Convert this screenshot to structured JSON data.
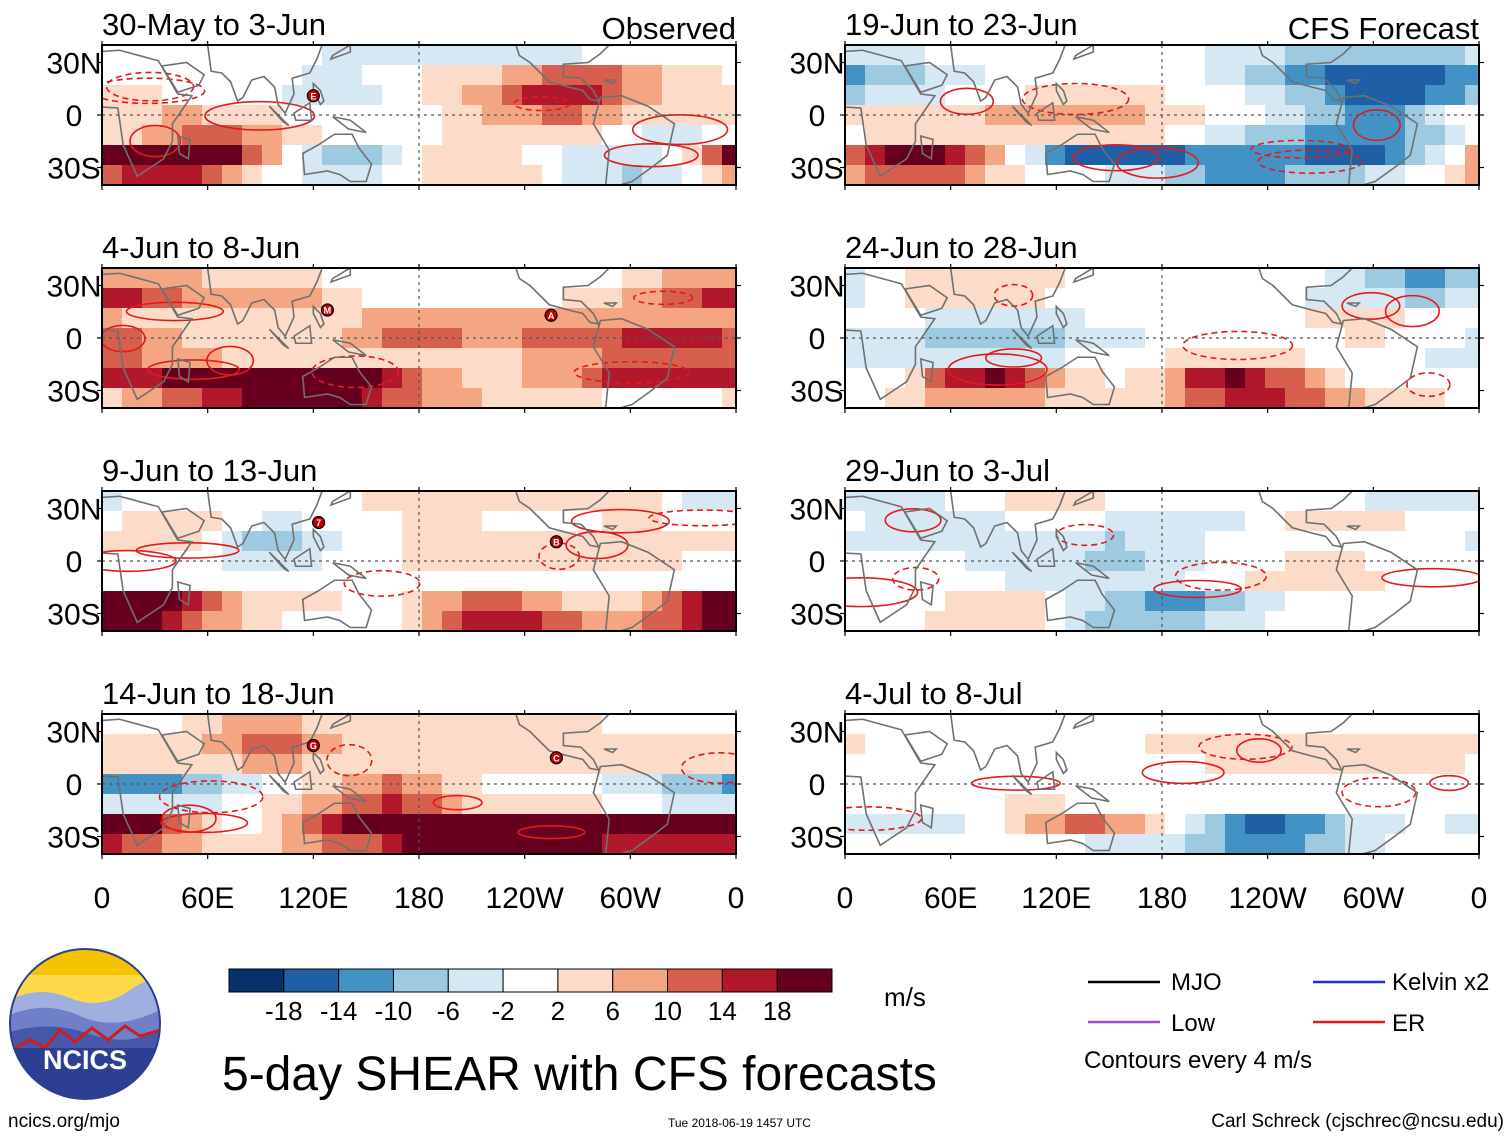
{
  "figure_title": "5-day SHEAR with CFS forecasts",
  "footer": {
    "url": "ncics.org/mjo",
    "timestamp": "Tue 2018-06-19 1457 UTC",
    "author": "Carl Schreck (cjschrec@ncsu.edu)"
  },
  "logo": {
    "text": "NCICS"
  },
  "colors": {
    "scale": [
      "#08306b",
      "#1f5fa5",
      "#4292c6",
      "#9ecae1",
      "#d6e8f4",
      "#ffffff",
      "#fcdcc8",
      "#f4a582",
      "#d6604d",
      "#b2182b",
      "#67001f"
    ],
    "er_contour": "#e31a1c",
    "mjo": "#000000",
    "low": "#a54cd6",
    "kelvin": "#1f2bd6",
    "land_outline": "#707070",
    "cyclone": "#c00000"
  },
  "chart_data": {
    "type": "heatmap",
    "variable": "5-day vertical wind shear anomaly",
    "units": "m/s",
    "colorbar": {
      "ticks": [
        "-18",
        "-14",
        "-10",
        "-6",
        "-2",
        "2",
        "6",
        "10",
        "14",
        "18"
      ],
      "units_label": "m/s"
    },
    "x_ticks": [
      "0",
      "60E",
      "120E",
      "180",
      "120W",
      "60W",
      "0"
    ],
    "y_ticks": [
      "30N",
      "0",
      "30S"
    ],
    "xlim_deg_east": [
      0,
      360
    ],
    "ylim_deg": [
      -40,
      40
    ],
    "columns": [
      {
        "label": "Observed",
        "panels": [
          {
            "title": "30-May to 3-Jun",
            "seed": 11,
            "amp": 1.0,
            "storms": [
              {
                "label": "E",
                "lon": 120,
                "lat": 11
              }
            ]
          },
          {
            "title": "4-Jun to 8-Jun",
            "seed": 23,
            "amp": 1.0,
            "storms": [
              {
                "label": "M",
                "lon": 128,
                "lat": 16
              },
              {
                "label": "A",
                "lon": 255,
                "lat": 13
              }
            ]
          },
          {
            "title": "9-Jun to 13-Jun",
            "seed": 37,
            "amp": 1.0,
            "storms": [
              {
                "label": "7",
                "lon": 123,
                "lat": 22
              },
              {
                "label": "B",
                "lon": 258,
                "lat": 11
              }
            ]
          },
          {
            "title": "14-Jun to 18-Jun",
            "seed": 41,
            "amp": 1.0,
            "storms": [
              {
                "label": "G",
                "lon": 120,
                "lat": 22
              },
              {
                "label": "C",
                "lon": 258,
                "lat": 15
              }
            ]
          }
        ]
      },
      {
        "label": "CFS Forecast",
        "panels": [
          {
            "title": "19-Jun to 23-Jun",
            "seed": 53,
            "amp": 1.0,
            "storms": []
          },
          {
            "title": "24-Jun to 28-Jun",
            "seed": 67,
            "amp": 0.85,
            "storms": []
          },
          {
            "title": "29-Jun to 3-Jul",
            "seed": 79,
            "amp": 0.6,
            "storms": []
          },
          {
            "title": "4-Jul to 8-Jul",
            "seed": 83,
            "amp": 0.45,
            "storms": []
          }
        ]
      }
    ],
    "legend": [
      {
        "label": "MJO",
        "key": "mjo"
      },
      {
        "label": "Kelvin x2",
        "key": "kelvin"
      },
      {
        "label": "Low",
        "key": "low"
      },
      {
        "label": "ER",
        "key": "er_contour"
      }
    ],
    "contour_note": "Contours every 4 m/s"
  }
}
